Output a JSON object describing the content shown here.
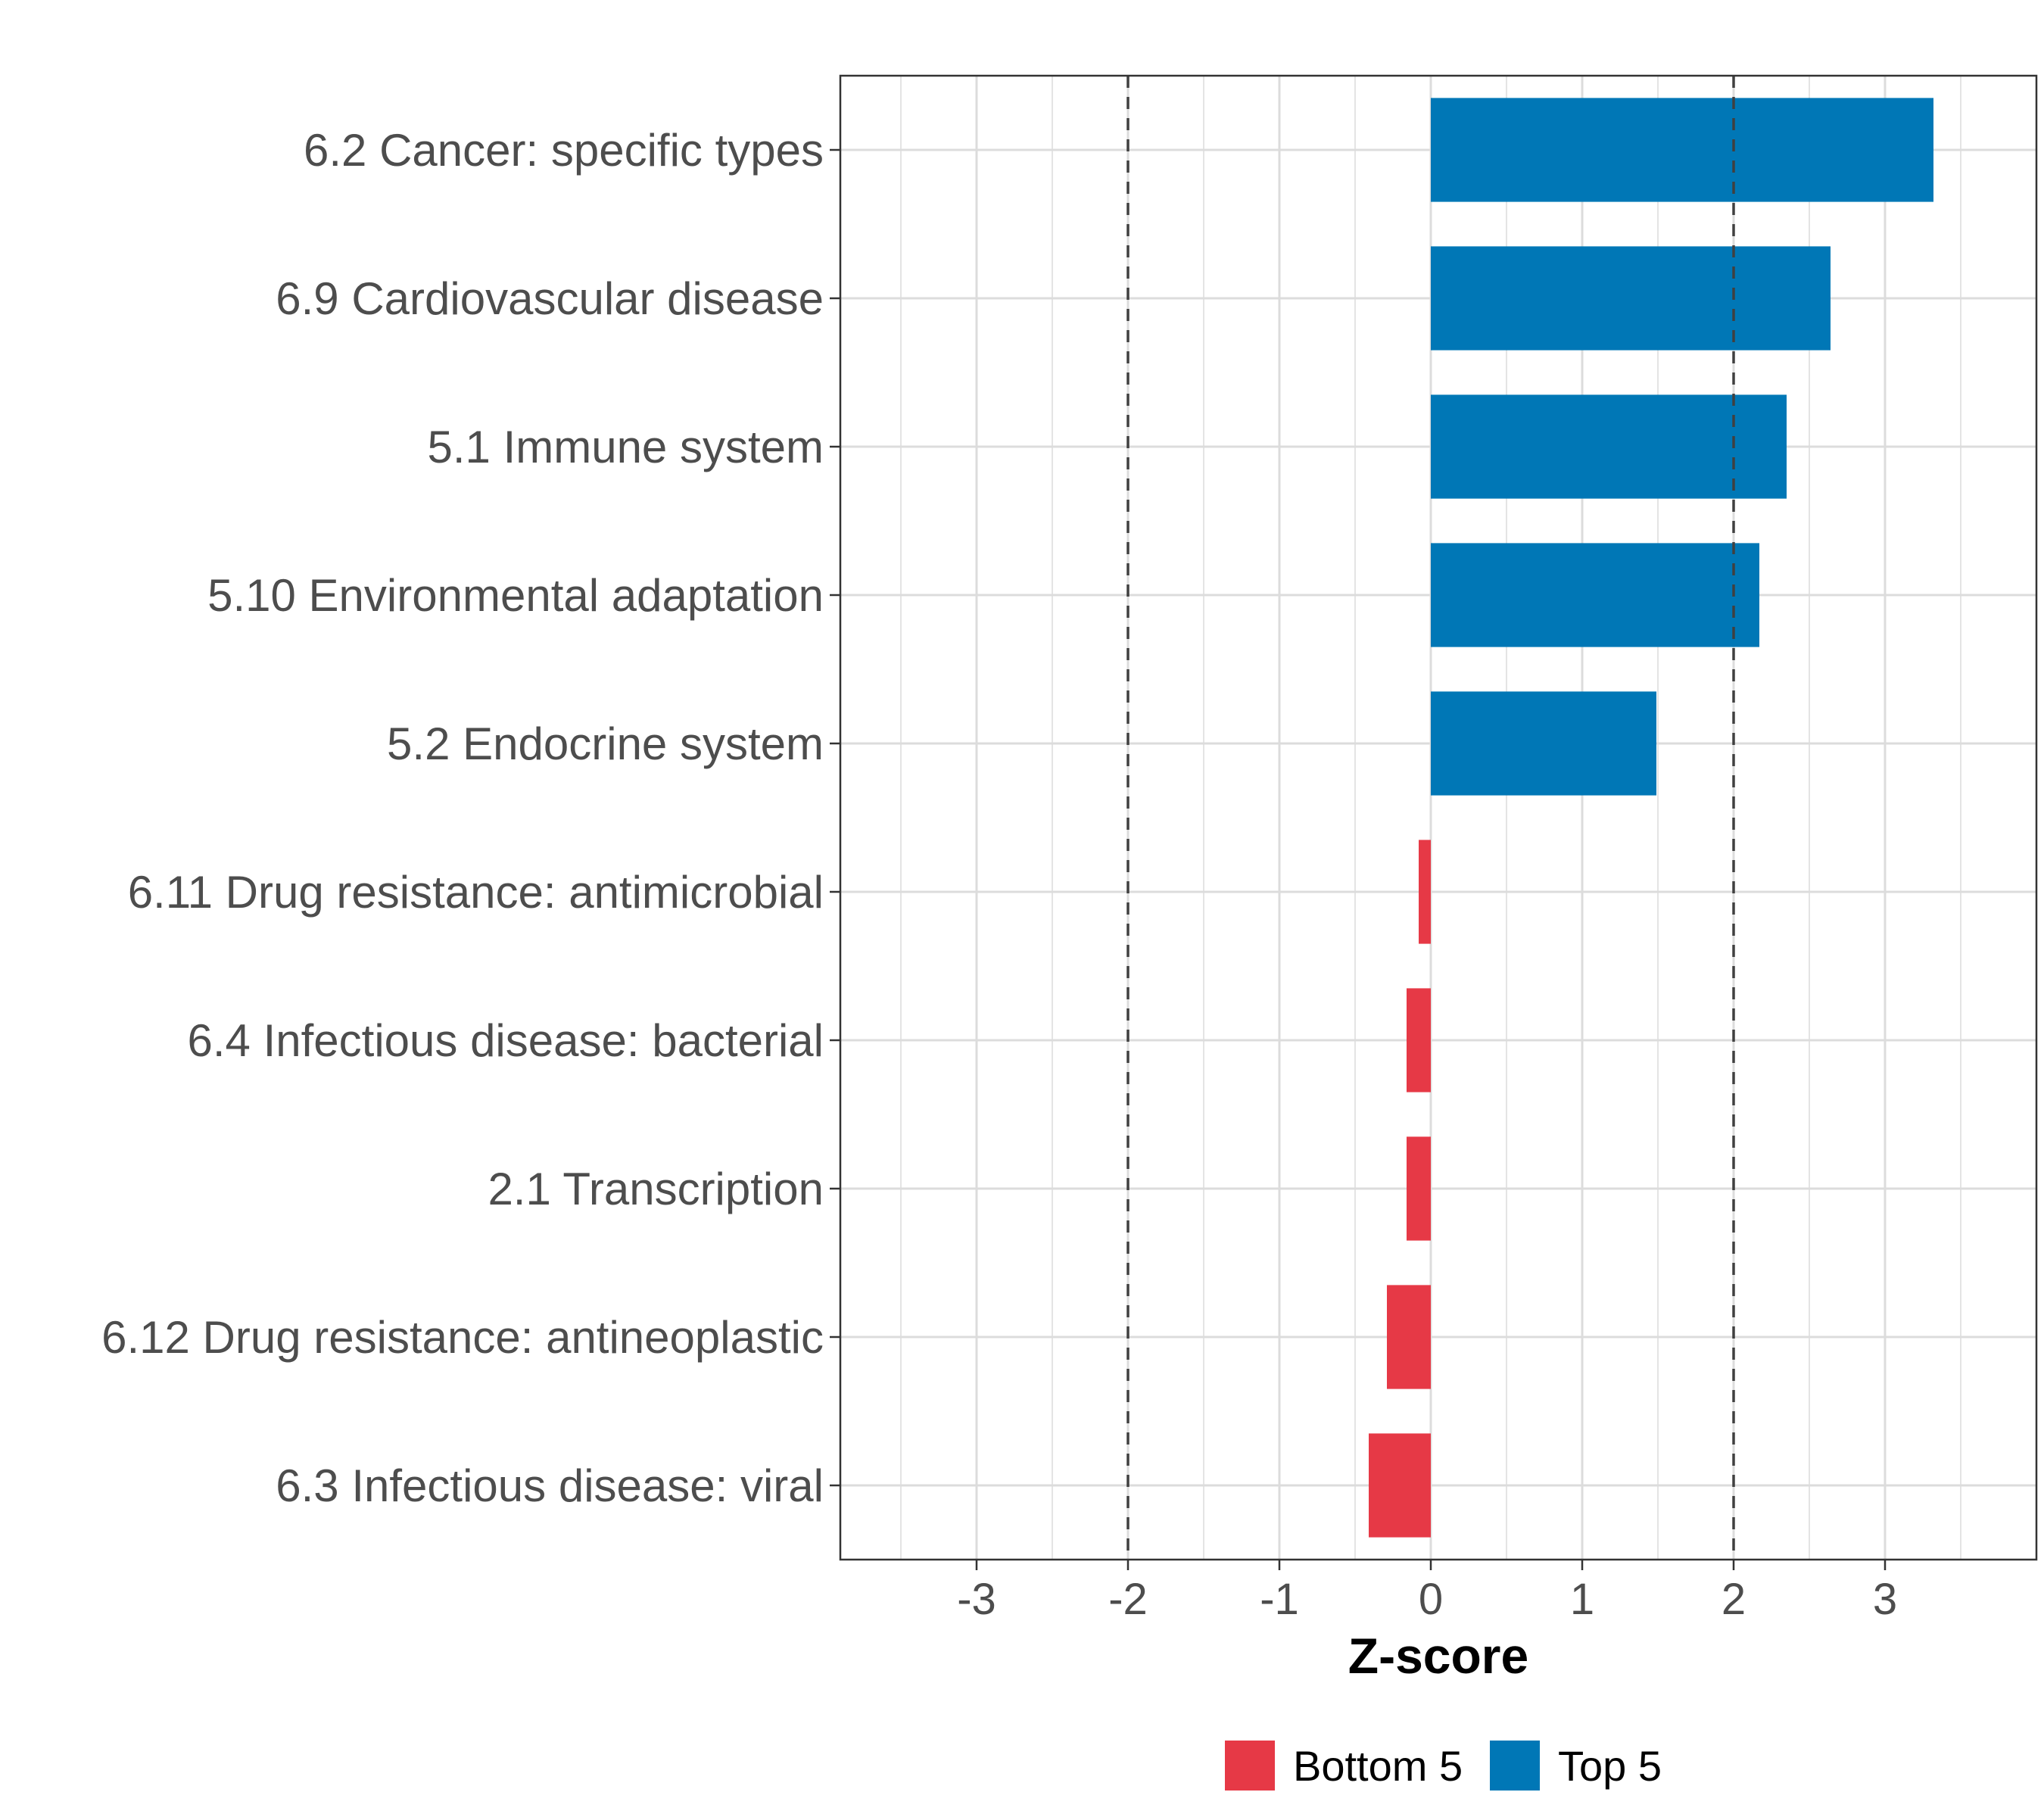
{
  "chart_data": {
    "type": "bar",
    "orientation": "horizontal",
    "categories": [
      "6.2 Cancer: specific types",
      "6.9 Cardiovascular disease",
      "5.1 Immune system",
      "5.10 Environmental adaptation",
      "5.2 Endocrine system",
      "6.11 Drug resistance: antimicrobial",
      "6.4 Infectious disease: bacterial",
      "2.1 Transcription",
      "6.12 Drug resistance: antineoplastic",
      "6.3 Infectious disease: viral"
    ],
    "values": [
      3.32,
      2.64,
      2.35,
      2.17,
      1.49,
      -0.08,
      -0.16,
      -0.16,
      -0.29,
      -0.41
    ],
    "groups": [
      "Top 5",
      "Top 5",
      "Top 5",
      "Top 5",
      "Top 5",
      "Bottom 5",
      "Bottom 5",
      "Bottom 5",
      "Bottom 5",
      "Bottom 5"
    ],
    "xlabel": "Z-score",
    "ylabel": "",
    "xlim": [
      -3.9,
      4.0
    ],
    "xticks": [
      -3,
      -2,
      -1,
      0,
      1,
      2,
      3
    ],
    "xtick_labels": [
      "-3",
      "-2",
      "-1",
      "0",
      "1",
      "2",
      "3"
    ],
    "reference_lines": [
      -2,
      2
    ],
    "grid": true,
    "legend": {
      "position": "bottom",
      "entries": [
        {
          "label": "Bottom 5",
          "color": "#e63946"
        },
        {
          "label": "Top 5",
          "color": "#0077b6"
        }
      ]
    },
    "colors": {
      "Top 5": "#0077b6",
      "Bottom 5": "#e63946"
    }
  }
}
